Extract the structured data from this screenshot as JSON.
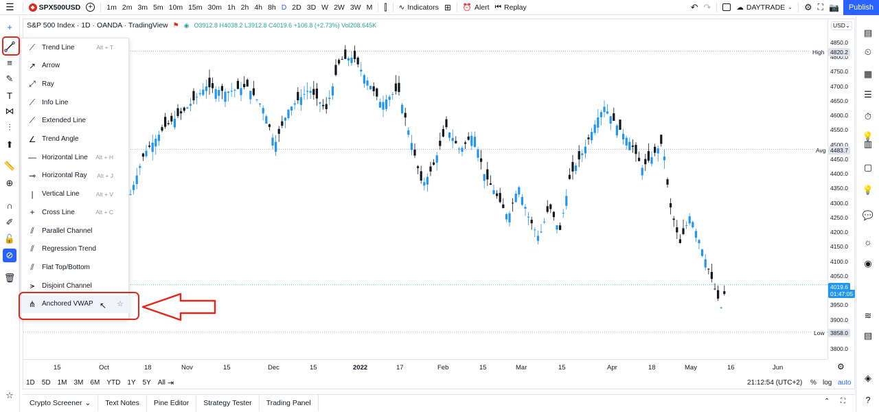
{
  "topbar": {
    "symbol": "SPX500USD",
    "timeframes": [
      "1m",
      "2m",
      "3m",
      "5m",
      "10m",
      "15m",
      "30m",
      "1h",
      "2h",
      "4h",
      "8h",
      "D",
      "2D",
      "3D",
      "W",
      "2W",
      "3W",
      "M"
    ],
    "active_timeframe": "D",
    "indicators_label": "Indicators",
    "alert_label": "Alert",
    "replay_label": "Replay",
    "layout_name": "DAYTRADE",
    "publish_label": "Publish"
  },
  "legend": {
    "title": "S&P 500 Index · 1D · OANDA · TradingView",
    "ohlc": "O3912.8 H4038.2 L3912.8 C4019.6 +106.8 (+2.73%) Vol208.645K"
  },
  "price_axis": {
    "currency": "USD⌄",
    "labels": [
      "4850.0",
      "4800.0",
      "4750.0",
      "4700.0",
      "4650.0",
      "4600.0",
      "4550.0",
      "4500.0",
      "4450.0",
      "4400.0",
      "4350.0",
      "4300.0",
      "4250.0",
      "4200.0",
      "4150.0",
      "4100.0",
      "4050.0",
      "3950.0",
      "3900.0",
      "3800.0"
    ],
    "high_label": "High",
    "high_value": "4820.2",
    "avg_label": "Avg",
    "avg_value": "4483.7",
    "low_label": "Low",
    "low_value": "3858.0",
    "last_value": "4019.6",
    "countdown": "01:47:05"
  },
  "time_axis": {
    "labels": [
      "15",
      "Oct",
      "18",
      "Nov",
      "15",
      "Dec",
      "15",
      "2022",
      "17",
      "Feb",
      "15",
      "Mar",
      "15",
      "Apr",
      "18",
      "May",
      "16",
      "Jun"
    ]
  },
  "range_bar": {
    "ranges": [
      "1D",
      "5D",
      "1M",
      "3M",
      "6M",
      "YTD",
      "1Y",
      "5Y",
      "All"
    ],
    "clock": "21:12:54 (UTC+2)",
    "percent": "%",
    "log": "log",
    "auto": "auto"
  },
  "bottom_tabs": [
    "Crypto Screener",
    "Text Notes",
    "Pine Editor",
    "Strategy Tester",
    "Trading Panel"
  ],
  "draw_menu": [
    {
      "label": "Trend Line",
      "shortcut": "Alt + T",
      "icon": "trend-line-icon"
    },
    {
      "label": "Arrow",
      "shortcut": "",
      "icon": "arrow-icon"
    },
    {
      "label": "Ray",
      "shortcut": "",
      "icon": "ray-icon"
    },
    {
      "label": "Info Line",
      "shortcut": "",
      "icon": "info-line-icon"
    },
    {
      "label": "Extended Line",
      "shortcut": "",
      "icon": "extended-line-icon"
    },
    {
      "label": "Trend Angle",
      "shortcut": "",
      "icon": "trend-angle-icon"
    },
    {
      "label": "Horizontal Line",
      "shortcut": "Alt + H",
      "icon": "horizontal-line-icon"
    },
    {
      "label": "Horizontal Ray",
      "shortcut": "Alt + J",
      "icon": "horizontal-ray-icon"
    },
    {
      "label": "Vertical Line",
      "shortcut": "Alt + V",
      "icon": "vertical-line-icon"
    },
    {
      "label": "Cross Line",
      "shortcut": "Alt + C",
      "icon": "cross-line-icon"
    },
    {
      "label": "Parallel Channel",
      "shortcut": "",
      "icon": "parallel-channel-icon"
    },
    {
      "label": "Regression Trend",
      "shortcut": "",
      "icon": "regression-trend-icon"
    },
    {
      "label": "Flat Top/Bottom",
      "shortcut": "",
      "icon": "flat-top-bottom-icon"
    },
    {
      "label": "Disjoint Channel",
      "shortcut": "",
      "icon": "disjoint-channel-icon"
    },
    {
      "label": "Anchored VWAP",
      "shortcut": "",
      "icon": "anchored-vwap-icon"
    }
  ],
  "colors": {
    "up": "#2196f3",
    "down": "#131722",
    "accent": "#2962ff",
    "annotation": "#e0281c"
  }
}
